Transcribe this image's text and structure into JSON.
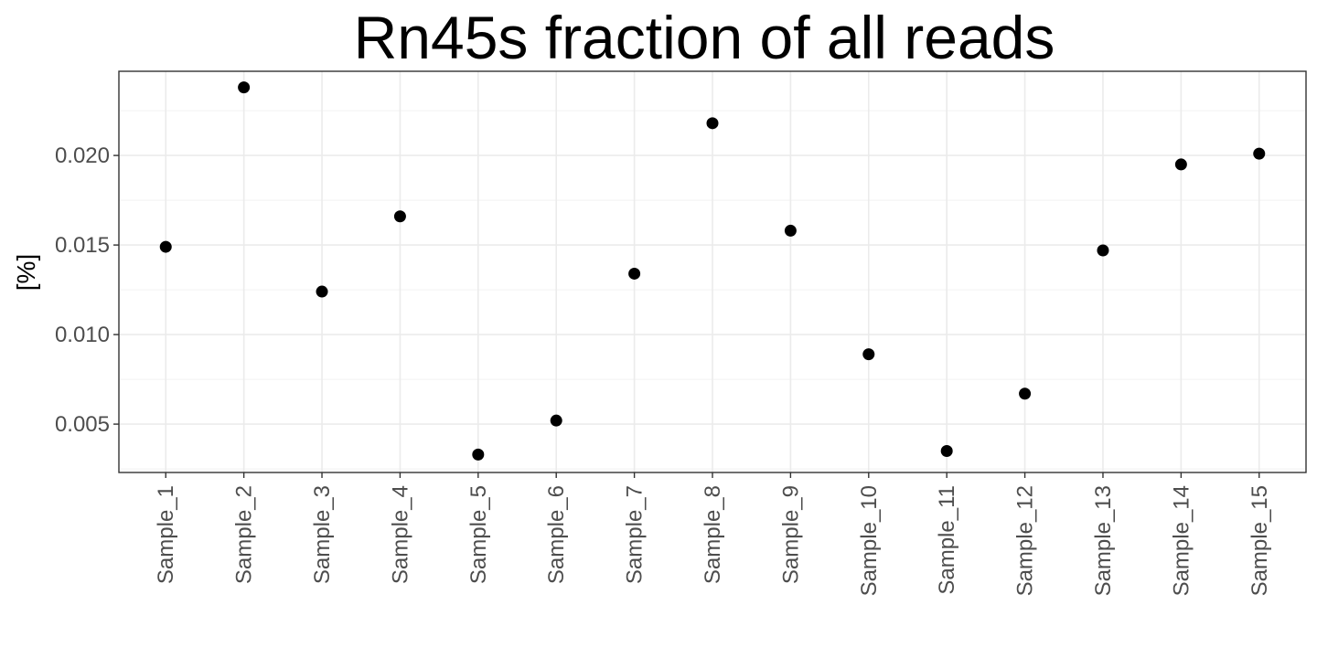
{
  "chart_data": {
    "type": "scatter",
    "title": "Rn45s fraction of all reads",
    "xlabel": "",
    "ylabel": "[%]",
    "categories": [
      "Sample_1",
      "Sample_2",
      "Sample_3",
      "Sample_4",
      "Sample_5",
      "Sample_6",
      "Sample_7",
      "Sample_8",
      "Sample_9",
      "Sample_10",
      "Sample_11",
      "Sample_12",
      "Sample_13",
      "Sample_14",
      "Sample_15"
    ],
    "values": [
      0.0149,
      0.0238,
      0.0124,
      0.0166,
      0.0033,
      0.0052,
      0.0134,
      0.0218,
      0.0158,
      0.0089,
      0.0035,
      0.0067,
      0.0147,
      0.0195,
      0.0201
    ],
    "yticks": [
      0.005,
      0.01,
      0.015,
      0.02
    ],
    "ytick_labels": [
      "0.005",
      "0.010",
      "0.015",
      "0.020"
    ],
    "ylim": [
      0.0023,
      0.0247
    ],
    "point_color": "#000000",
    "grid": true,
    "legend": "none"
  }
}
